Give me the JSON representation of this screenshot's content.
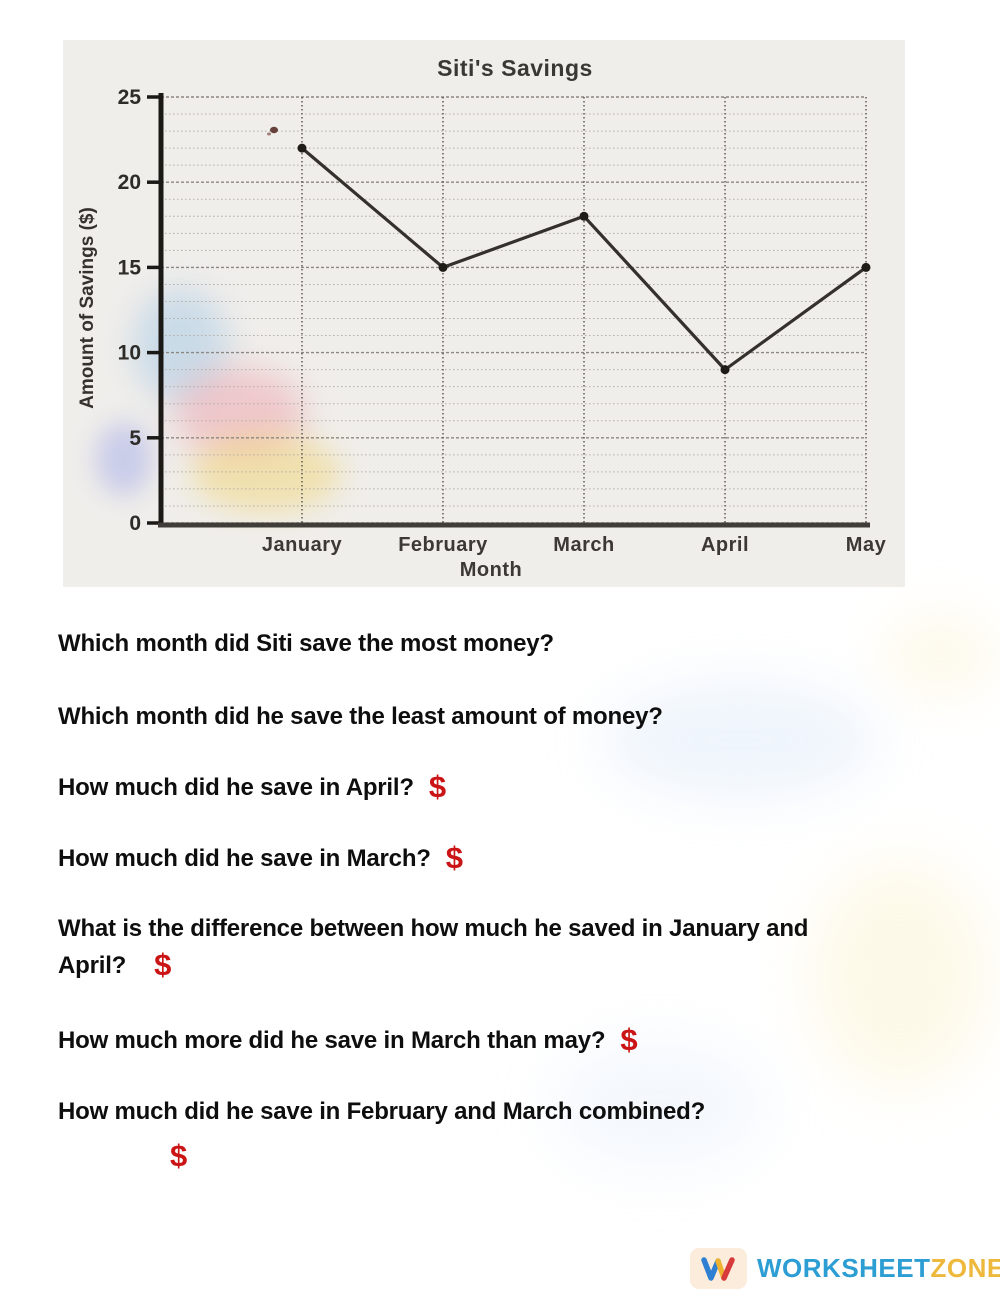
{
  "chart_data": {
    "type": "line",
    "title": "Siti's Savings",
    "xlabel": "Month",
    "ylabel": "Amount of Savings ($)",
    "categories": [
      "January",
      "February",
      "March",
      "April",
      "May"
    ],
    "values": [
      22,
      15,
      18,
      9,
      15
    ],
    "ylim": [
      0,
      25
    ],
    "ytick_step": 5,
    "minor_grid_step": 1,
    "grid": true,
    "legend": "none",
    "line_color": "#34312c",
    "point_color": "#1f1c18",
    "axis_color": "#1b1916",
    "title_color": "#3a3834",
    "label_color": "#3b3835"
  },
  "questions": [
    {
      "text": "Which month did Siti save the most money?",
      "dollar": "none"
    },
    {
      "text": "Which month did he save the least amount of money?",
      "dollar": "none"
    },
    {
      "text": "How much did he save in April?",
      "dollar": "inline"
    },
    {
      "text": "How much did he save in March?",
      "dollar": "inline"
    },
    {
      "line1": "What is the difference between how much he saved in January and",
      "line2": "April?",
      "dollar": "inline"
    },
    {
      "text": "How much more did he save in March than may?",
      "dollar": "inline"
    },
    {
      "text": "How much did he save in February and March combined?",
      "dollar": "ownline"
    }
  ],
  "symbols": {
    "dollar": "$"
  },
  "footer": {
    "brand_primary": "WORKSHEET",
    "brand_secondary": "ZONE",
    "brand_primary_color": "#2d9ed3",
    "brand_secondary_color": "#eeb83d",
    "badge_bg": "#fbecdb",
    "w_icon_colors": {
      "blue": "#2f80d2",
      "yellow": "#f0b231",
      "red": "#d8393a"
    }
  }
}
